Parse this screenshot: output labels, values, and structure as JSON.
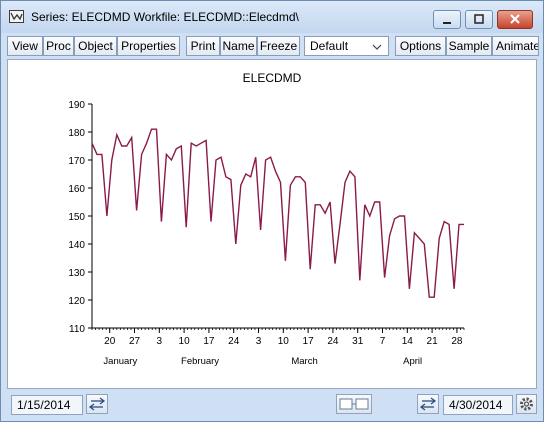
{
  "window": {
    "title": "Series: ELECDMD   Workfile: ELECDMD::Elecdmd\\",
    "icon": "series-window-icon",
    "controls": [
      "minimize-icon",
      "maximize-icon",
      "close-icon"
    ]
  },
  "toolbar": {
    "buttons": [
      "View",
      "Proc",
      "Object",
      "Properties",
      "Print",
      "Name",
      "Freeze"
    ],
    "dropdown_value": "Default",
    "buttons_right": [
      "Options",
      "Sample",
      "Animate"
    ]
  },
  "status": {
    "start_date": "1/15/2014",
    "end_date": "4/30/2014"
  },
  "chart_data": {
    "type": "line",
    "title": "ELECDMD",
    "color": "#8b1a4a",
    "ylim": [
      110,
      190
    ],
    "y_ticks": [
      110,
      120,
      130,
      140,
      150,
      160,
      170,
      180,
      190
    ],
    "x_range": [
      "2014-01-15",
      "2014-04-30"
    ],
    "x_tick_labels": [
      "20",
      "27",
      "3",
      "10",
      "17",
      "24",
      "3",
      "10",
      "17",
      "24",
      "31",
      "7",
      "14",
      "21",
      "28"
    ],
    "month_labels": [
      "January",
      "February",
      "March",
      "April"
    ],
    "series": [
      {
        "values": [
          176,
          172,
          172,
          150,
          170,
          179,
          175,
          175,
          178,
          152,
          172,
          176,
          181,
          181,
          148,
          172,
          170,
          174,
          175,
          146,
          176,
          175,
          176,
          177,
          148,
          170,
          171,
          164,
          163,
          140,
          161,
          165,
          164,
          171,
          145,
          170,
          171,
          166,
          162,
          134,
          161,
          164,
          164,
          162,
          131,
          154,
          154,
          151,
          155,
          133,
          147,
          162,
          166,
          164,
          127,
          154,
          150,
          155,
          155,
          128,
          143,
          149,
          150,
          150,
          124,
          144,
          142,
          140,
          121,
          121,
          142,
          148,
          147,
          124,
          147,
          147
        ]
      }
    ]
  }
}
